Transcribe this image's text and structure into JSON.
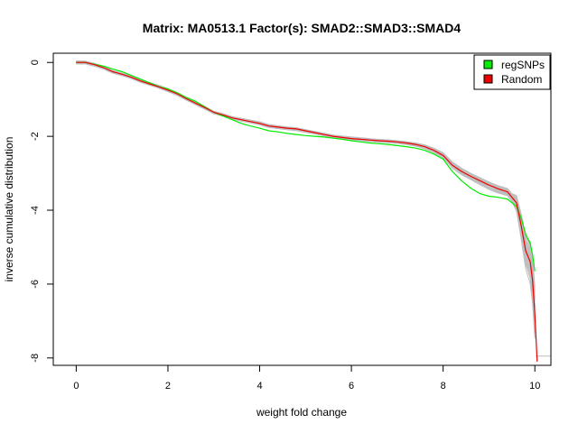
{
  "chart_data": {
    "type": "line",
    "title": "Matrix: MA0513.1 Factor(s): SMAD2::SMAD3::SMAD4",
    "xlabel": "weight fold change",
    "ylabel": "inverse cumulative distribution",
    "xlim": [
      -0.5,
      10.35
    ],
    "ylim": [
      -8.2,
      0.25
    ],
    "xticks": [
      0,
      2,
      4,
      6,
      8,
      10
    ],
    "xtick_labels": [
      "0",
      "2",
      "4",
      "6",
      "8",
      "10"
    ],
    "yticks": [
      0,
      -2,
      -4,
      -6,
      -8
    ],
    "ytick_labels": [
      "0",
      "-2",
      "-4",
      "-6",
      "-8"
    ],
    "grid": false,
    "legend": {
      "placement": "top-right",
      "entries": [
        {
          "label": "regSNPs",
          "color": "#00ee00"
        },
        {
          "label": "Random",
          "color": "#ee0000"
        }
      ]
    },
    "series": [
      {
        "name": "regSNPs",
        "color": "#00ee00",
        "x": [
          0,
          0.2,
          0.4,
          0.6,
          0.8,
          1.0,
          1.2,
          1.4,
          1.6,
          1.8,
          2.0,
          2.2,
          2.4,
          2.6,
          2.8,
          3.0,
          3.2,
          3.4,
          3.6,
          3.8,
          4.0,
          4.2,
          4.4,
          4.6,
          4.8,
          5.0,
          5.2,
          5.4,
          5.6,
          5.8,
          6.0,
          6.2,
          6.4,
          6.6,
          6.8,
          7.0,
          7.2,
          7.4,
          7.6,
          7.8,
          8.0,
          8.2,
          8.4,
          8.6,
          8.8,
          9.0,
          9.2,
          9.4,
          9.6,
          9.7,
          9.8,
          9.9,
          9.95,
          10.0
        ],
        "y": [
          0,
          0,
          -0.05,
          -0.1,
          -0.18,
          -0.25,
          -0.35,
          -0.45,
          -0.55,
          -0.65,
          -0.72,
          -0.82,
          -0.95,
          -1.05,
          -1.2,
          -1.35,
          -1.45,
          -1.55,
          -1.65,
          -1.72,
          -1.78,
          -1.85,
          -1.88,
          -1.92,
          -1.95,
          -1.98,
          -2.0,
          -2.02,
          -2.05,
          -2.08,
          -2.12,
          -2.15,
          -2.18,
          -2.2,
          -2.22,
          -2.25,
          -2.28,
          -2.32,
          -2.38,
          -2.48,
          -2.62,
          -2.95,
          -3.2,
          -3.4,
          -3.55,
          -3.62,
          -3.65,
          -3.7,
          -3.9,
          -4.2,
          -4.65,
          -4.9,
          -5.2,
          -5.65
        ]
      },
      {
        "name": "Random",
        "color": "#ee0000",
        "x": [
          0,
          0.2,
          0.4,
          0.6,
          0.8,
          1.0,
          1.2,
          1.4,
          1.6,
          1.8,
          2.0,
          2.2,
          2.4,
          2.6,
          2.8,
          3.0,
          3.2,
          3.4,
          3.6,
          3.8,
          4.0,
          4.2,
          4.4,
          4.6,
          4.8,
          5.0,
          5.2,
          5.4,
          5.6,
          5.8,
          6.0,
          6.2,
          6.4,
          6.6,
          6.8,
          7.0,
          7.2,
          7.4,
          7.6,
          7.8,
          8.0,
          8.2,
          8.4,
          8.6,
          8.8,
          9.0,
          9.2,
          9.4,
          9.6,
          9.7,
          9.8,
          9.9,
          9.95,
          10.0,
          10.05
        ],
        "y": [
          0,
          0,
          -0.06,
          -0.14,
          -0.25,
          -0.32,
          -0.4,
          -0.5,
          -0.58,
          -0.66,
          -0.75,
          -0.85,
          -0.98,
          -1.1,
          -1.22,
          -1.35,
          -1.42,
          -1.5,
          -1.55,
          -1.6,
          -1.65,
          -1.72,
          -1.75,
          -1.78,
          -1.8,
          -1.85,
          -1.9,
          -1.95,
          -2.0,
          -2.03,
          -2.06,
          -2.08,
          -2.1,
          -2.12,
          -2.13,
          -2.15,
          -2.18,
          -2.22,
          -2.28,
          -2.38,
          -2.52,
          -2.78,
          -2.95,
          -3.08,
          -3.2,
          -3.32,
          -3.42,
          -3.5,
          -3.8,
          -4.4,
          -5.1,
          -5.4,
          -5.9,
          -6.8,
          -8.1
        ]
      }
    ]
  }
}
